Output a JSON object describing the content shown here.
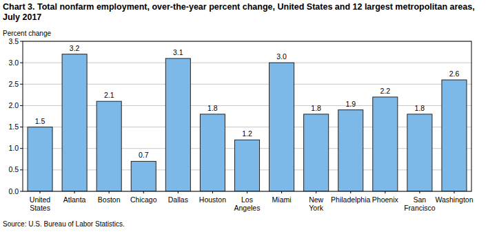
{
  "chart_data": {
    "type": "bar",
    "title": "Chart 3. Total nonfarm employment, over-the-year percent change, United States and 12 largest metropolitan areas, July 2017",
    "y_label": "Percent change",
    "source": "Source: U.S. Bureau of Labor Statistics.",
    "categories": [
      "United States",
      "Atlanta",
      "Boston",
      "Chicago",
      "Dallas",
      "Houston",
      "Los Angeles",
      "Miami",
      "New York",
      "Philadelphia",
      "Phoenix",
      "San Francisco",
      "Washington"
    ],
    "values": [
      1.5,
      3.2,
      2.1,
      0.7,
      3.1,
      1.8,
      1.2,
      3.0,
      1.8,
      1.9,
      2.2,
      1.8,
      2.6
    ],
    "value_labels": [
      "1.5",
      "3.2",
      "2.1",
      "0.7",
      "3.1",
      "1.8",
      "1.2",
      "3.0",
      "1.8",
      "1.9",
      "2.2",
      "1.8",
      "2.6"
    ],
    "color": "#7db9e8",
    "ylim": [
      0,
      3.5
    ],
    "yticks": [
      {
        "value": 0,
        "label": "0.0"
      },
      0.5,
      {
        "value": 1,
        "label": "1.0"
      },
      1.5,
      {
        "value": 2,
        "label": "2.0"
      },
      2.5,
      {
        "value": 3,
        "label": "3.0"
      },
      3.5
    ],
    "grid": true,
    "data_labels": true
  }
}
